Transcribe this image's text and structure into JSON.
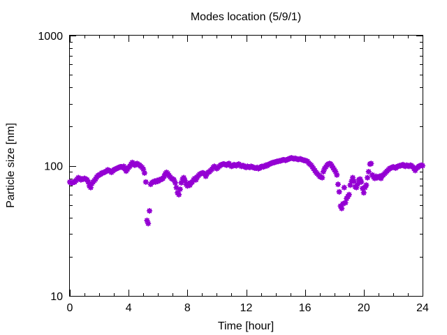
{
  "chart_data": {
    "type": "scatter",
    "title": "Modes location (5/9/1)",
    "xlabel": "Time [hour]",
    "ylabel": "Particle size [nm]",
    "xlim": [
      0,
      24
    ],
    "ylim": [
      10,
      1000
    ],
    "y_scale": "log",
    "grid": false,
    "marker_color": "#9400d3",
    "x_ticks": [
      {
        "value": 0,
        "label": "0"
      },
      {
        "value": 4,
        "label": "4"
      },
      {
        "value": 8,
        "label": "8"
      },
      {
        "value": 12,
        "label": "12"
      },
      {
        "value": 16,
        "label": "16"
      },
      {
        "value": 20,
        "label": "20"
      },
      {
        "value": 24,
        "label": "24"
      }
    ],
    "y_ticks": [
      {
        "value": 10,
        "label": "10"
      },
      {
        "value": 100,
        "label": "100"
      },
      {
        "value": 1000,
        "label": "1000"
      }
    ],
    "points": [
      [
        0.0,
        75
      ],
      [
        0.08,
        74
      ],
      [
        0.17,
        74
      ],
      [
        0.25,
        75
      ],
      [
        0.33,
        75
      ],
      [
        0.42,
        77
      ],
      [
        0.5,
        79
      ],
      [
        0.58,
        81
      ],
      [
        0.67,
        80
      ],
      [
        0.75,
        78
      ],
      [
        0.83,
        79
      ],
      [
        0.92,
        79
      ],
      [
        1.0,
        80
      ],
      [
        1.08,
        79
      ],
      [
        1.17,
        78
      ],
      [
        1.25,
        75
      ],
      [
        1.33,
        70
      ],
      [
        1.42,
        68
      ],
      [
        1.5,
        73
      ],
      [
        1.58,
        75
      ],
      [
        1.67,
        77
      ],
      [
        1.75,
        79
      ],
      [
        1.83,
        82
      ],
      [
        1.92,
        84
      ],
      [
        2.0,
        85
      ],
      [
        2.08,
        86
      ],
      [
        2.17,
        88
      ],
      [
        2.25,
        88
      ],
      [
        2.33,
        89
      ],
      [
        2.42,
        90
      ],
      [
        2.5,
        91
      ],
      [
        2.58,
        93
      ],
      [
        2.67,
        92
      ],
      [
        2.75,
        91
      ],
      [
        2.83,
        89
      ],
      [
        2.92,
        91
      ],
      [
        3.0,
        93
      ],
      [
        3.08,
        94
      ],
      [
        3.17,
        95
      ],
      [
        3.25,
        96
      ],
      [
        3.33,
        97
      ],
      [
        3.42,
        98
      ],
      [
        3.5,
        98
      ],
      [
        3.58,
        97
      ],
      [
        3.67,
        99
      ],
      [
        3.75,
        95
      ],
      [
        3.83,
        91
      ],
      [
        3.92,
        94
      ],
      [
        4.0,
        97
      ],
      [
        4.08,
        99
      ],
      [
        4.17,
        103
      ],
      [
        4.25,
        106
      ],
      [
        4.33,
        104
      ],
      [
        4.42,
        101
      ],
      [
        4.5,
        103
      ],
      [
        4.58,
        104
      ],
      [
        4.67,
        102
      ],
      [
        4.75,
        101
      ],
      [
        4.83,
        99
      ],
      [
        4.92,
        97
      ],
      [
        5.0,
        94
      ],
      [
        5.08,
        88
      ],
      [
        5.17,
        75
      ],
      [
        5.25,
        38
      ],
      [
        5.33,
        36
      ],
      [
        5.42,
        45
      ],
      [
        5.5,
        72
      ],
      [
        5.58,
        74
      ],
      [
        5.67,
        75
      ],
      [
        5.75,
        76
      ],
      [
        5.83,
        75
      ],
      [
        5.92,
        77
      ],
      [
        6.0,
        76
      ],
      [
        6.08,
        78
      ],
      [
        6.17,
        78
      ],
      [
        6.25,
        79
      ],
      [
        6.33,
        80
      ],
      [
        6.42,
        83
      ],
      [
        6.5,
        87
      ],
      [
        6.58,
        89
      ],
      [
        6.67,
        87
      ],
      [
        6.75,
        84
      ],
      [
        6.83,
        82
      ],
      [
        6.92,
        80
      ],
      [
        7.0,
        79
      ],
      [
        7.08,
        78
      ],
      [
        7.17,
        74
      ],
      [
        7.25,
        68
      ],
      [
        7.33,
        62
      ],
      [
        7.42,
        60
      ],
      [
        7.5,
        66
      ],
      [
        7.58,
        74
      ],
      [
        7.67,
        79
      ],
      [
        7.75,
        81
      ],
      [
        7.83,
        77
      ],
      [
        7.92,
        72
      ],
      [
        8.0,
        70
      ],
      [
        8.08,
        73
      ],
      [
        8.17,
        71
      ],
      [
        8.25,
        74
      ],
      [
        8.33,
        75
      ],
      [
        8.42,
        78
      ],
      [
        8.5,
        80
      ],
      [
        8.58,
        78
      ],
      [
        8.67,
        82
      ],
      [
        8.75,
        84
      ],
      [
        8.83,
        86
      ],
      [
        8.92,
        87
      ],
      [
        9.0,
        88
      ],
      [
        9.08,
        88
      ],
      [
        9.17,
        87
      ],
      [
        9.25,
        83
      ],
      [
        9.33,
        87
      ],
      [
        9.42,
        89
      ],
      [
        9.5,
        90
      ],
      [
        9.58,
        92
      ],
      [
        9.67,
        94
      ],
      [
        9.75,
        97
      ],
      [
        9.83,
        99
      ],
      [
        9.92,
        97
      ],
      [
        10.0,
        95
      ],
      [
        10.08,
        97
      ],
      [
        10.17,
        99
      ],
      [
        10.25,
        101
      ],
      [
        10.33,
        102
      ],
      [
        10.42,
        103
      ],
      [
        10.5,
        103
      ],
      [
        10.58,
        102
      ],
      [
        10.67,
        101
      ],
      [
        10.75,
        103
      ],
      [
        10.83,
        104
      ],
      [
        10.92,
        101
      ],
      [
        11.0,
        99
      ],
      [
        11.08,
        100
      ],
      [
        11.17,
        102
      ],
      [
        11.25,
        101
      ],
      [
        11.33,
        100
      ],
      [
        11.42,
        102
      ],
      [
        11.5,
        103
      ],
      [
        11.58,
        101
      ],
      [
        11.67,
        99
      ],
      [
        11.75,
        100
      ],
      [
        11.83,
        100
      ],
      [
        11.92,
        98
      ],
      [
        12.0,
        97
      ],
      [
        12.08,
        99
      ],
      [
        12.17,
        98
      ],
      [
        12.25,
        97
      ],
      [
        12.33,
        99
      ],
      [
        12.42,
        98
      ],
      [
        12.5,
        97
      ],
      [
        12.58,
        96
      ],
      [
        12.67,
        96
      ],
      [
        12.75,
        97
      ],
      [
        12.83,
        95
      ],
      [
        12.92,
        96
      ],
      [
        13.0,
        98
      ],
      [
        13.08,
        99
      ],
      [
        13.17,
        98
      ],
      [
        13.25,
        99
      ],
      [
        13.33,
        101
      ],
      [
        13.42,
        100
      ],
      [
        13.5,
        102
      ],
      [
        13.58,
        103
      ],
      [
        13.67,
        104
      ],
      [
        13.75,
        105
      ],
      [
        13.83,
        106
      ],
      [
        13.92,
        106
      ],
      [
        14.0,
        107
      ],
      [
        14.08,
        108
      ],
      [
        14.17,
        108
      ],
      [
        14.25,
        109
      ],
      [
        14.33,
        109
      ],
      [
        14.42,
        110
      ],
      [
        14.5,
        111
      ],
      [
        14.58,
        111
      ],
      [
        14.67,
        110
      ],
      [
        14.75,
        111
      ],
      [
        14.83,
        112
      ],
      [
        14.92,
        113
      ],
      [
        15.0,
        114
      ],
      [
        15.08,
        115
      ],
      [
        15.17,
        114
      ],
      [
        15.25,
        113
      ],
      [
        15.33,
        114
      ],
      [
        15.42,
        113
      ],
      [
        15.5,
        112
      ],
      [
        15.58,
        112
      ],
      [
        15.67,
        113
      ],
      [
        15.75,
        112
      ],
      [
        15.83,
        111
      ],
      [
        15.92,
        110
      ],
      [
        16.0,
        110
      ],
      [
        16.08,
        109
      ],
      [
        16.17,
        108
      ],
      [
        16.25,
        105
      ],
      [
        16.33,
        103
      ],
      [
        16.42,
        101
      ],
      [
        16.5,
        98
      ],
      [
        16.58,
        95
      ],
      [
        16.67,
        92
      ],
      [
        16.75,
        89
      ],
      [
        16.83,
        87
      ],
      [
        16.92,
        85
      ],
      [
        17.0,
        83
      ],
      [
        17.08,
        82
      ],
      [
        17.17,
        81
      ],
      [
        17.25,
        90
      ],
      [
        17.33,
        95
      ],
      [
        17.42,
        98
      ],
      [
        17.5,
        101
      ],
      [
        17.58,
        103
      ],
      [
        17.67,
        104
      ],
      [
        17.75,
        103
      ],
      [
        17.83,
        100
      ],
      [
        17.92,
        96
      ],
      [
        18.0,
        93
      ],
      [
        18.08,
        90
      ],
      [
        18.17,
        85
      ],
      [
        18.25,
        72
      ],
      [
        18.33,
        63
      ],
      [
        18.42,
        49
      ],
      [
        18.5,
        47
      ],
      [
        18.58,
        51
      ],
      [
        18.67,
        68
      ],
      [
        18.75,
        52
      ],
      [
        18.83,
        56
      ],
      [
        18.92,
        58
      ],
      [
        19.0,
        60
      ],
      [
        19.08,
        71
      ],
      [
        19.17,
        76
      ],
      [
        19.25,
        81
      ],
      [
        19.33,
        76
      ],
      [
        19.42,
        69
      ],
      [
        19.5,
        68
      ],
      [
        19.58,
        72
      ],
      [
        19.67,
        78
      ],
      [
        19.75,
        79
      ],
      [
        19.83,
        75
      ],
      [
        19.92,
        67
      ],
      [
        20.0,
        62
      ],
      [
        20.08,
        68
      ],
      [
        20.17,
        71
      ],
      [
        20.25,
        81
      ],
      [
        20.33,
        90
      ],
      [
        20.42,
        103
      ],
      [
        20.5,
        104
      ],
      [
        20.58,
        85
      ],
      [
        20.67,
        82
      ],
      [
        20.75,
        80
      ],
      [
        20.83,
        83
      ],
      [
        20.92,
        81
      ],
      [
        21.0,
        82
      ],
      [
        21.08,
        83
      ],
      [
        21.17,
        80
      ],
      [
        21.25,
        84
      ],
      [
        21.33,
        85
      ],
      [
        21.42,
        87
      ],
      [
        21.5,
        89
      ],
      [
        21.58,
        91
      ],
      [
        21.67,
        93
      ],
      [
        21.75,
        95
      ],
      [
        21.83,
        96
      ],
      [
        21.92,
        97
      ],
      [
        22.0,
        98
      ],
      [
        22.08,
        97
      ],
      [
        22.17,
        96
      ],
      [
        22.25,
        98
      ],
      [
        22.33,
        99
      ],
      [
        22.42,
        100
      ],
      [
        22.5,
        100
      ],
      [
        22.58,
        101
      ],
      [
        22.67,
        102
      ],
      [
        22.75,
        100
      ],
      [
        22.83,
        99
      ],
      [
        22.92,
        101
      ],
      [
        23.0,
        100
      ],
      [
        23.08,
        99
      ],
      [
        23.17,
        101
      ],
      [
        23.25,
        100
      ],
      [
        23.33,
        98
      ],
      [
        23.42,
        95
      ],
      [
        23.5,
        92
      ],
      [
        23.58,
        96
      ],
      [
        23.67,
        97
      ],
      [
        23.75,
        99
      ],
      [
        23.83,
        100
      ],
      [
        23.92,
        101
      ],
      [
        24.0,
        100
      ]
    ]
  }
}
